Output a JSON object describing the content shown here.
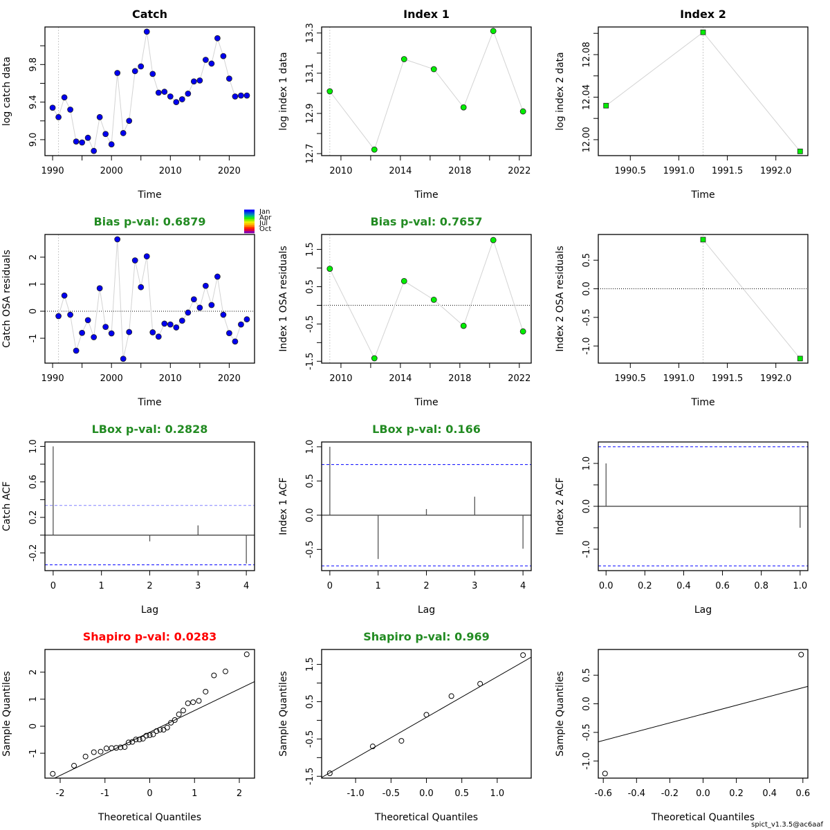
{
  "footer": "spict_v1.3.5@ac6aaf",
  "colors": {
    "catch_point": "#0000EE",
    "index_point": "#00EE00",
    "pass_title": "#228B22",
    "fail_title": "#FF0000",
    "conf_line": "#0000FF",
    "connector": "#D3D3D3"
  },
  "month_legend": {
    "labels": [
      "Jan",
      "Apr",
      "Jul",
      "Oct"
    ],
    "colors": [
      "#0000FF",
      "#0044DD",
      "#0088BB",
      "#00CC66",
      "#33EE00",
      "#99EE00",
      "#EEEE00",
      "#FFBB00",
      "#FF7700",
      "#FF2200",
      "#DD0044",
      "#8800AA"
    ]
  },
  "chart_data": [
    {
      "id": "catch-data",
      "type": "line",
      "title": "Catch",
      "title_color": "#000000",
      "xlabel": "Time",
      "ylabel": "log catch data",
      "xlim": [
        1988.7,
        2024.3
      ],
      "ylim": [
        8.83,
        10.2
      ],
      "xticks": [
        1990,
        2000,
        2010,
        2020
      ],
      "xtick_labels": [
        "1990",
        "2000",
        "2010",
        "2020"
      ],
      "xminor": [
        1995,
        2005,
        2015
      ],
      "yticks": [
        9.0,
        9.2,
        9.4,
        9.6,
        9.8,
        10.0
      ],
      "ytick_labels": [
        "9.0",
        "",
        "9.4",
        "",
        "9.8",
        ""
      ],
      "vline": 1991,
      "marker": "circle",
      "color": "#0000EE",
      "x": [
        1990,
        1991,
        1992,
        1993,
        1994,
        1995,
        1996,
        1997,
        1998,
        1999,
        2000,
        2001,
        2002,
        2003,
        2004,
        2005,
        2006,
        2007,
        2008,
        2009,
        2010,
        2011,
        2012,
        2013,
        2014,
        2015,
        2016,
        2017,
        2018,
        2019,
        2020,
        2021,
        2022,
        2023
      ],
      "y": [
        9.34,
        9.24,
        9.45,
        9.32,
        8.98,
        8.97,
        9.02,
        8.88,
        9.24,
        9.06,
        8.95,
        9.71,
        9.07,
        9.2,
        9.73,
        9.78,
        10.15,
        9.7,
        9.5,
        9.51,
        9.46,
        9.4,
        9.43,
        9.49,
        9.62,
        9.63,
        9.85,
        9.81,
        10.08,
        9.89,
        9.65,
        9.46,
        9.47,
        9.47
      ]
    },
    {
      "id": "index1-data",
      "type": "line",
      "title": "Index 1",
      "title_color": "#000000",
      "xlabel": "Time",
      "ylabel": "log index 1 data",
      "xlim": [
        2008.7,
        2022.8
      ],
      "ylim": [
        12.69,
        13.33
      ],
      "xticks": [
        2010,
        2012,
        2014,
        2016,
        2018,
        2020,
        2022
      ],
      "xtick_labels": [
        "2010",
        "",
        "2014",
        "",
        "2018",
        "",
        "2022"
      ],
      "yticks": [
        12.7,
        12.8,
        12.9,
        13.0,
        13.1,
        13.2,
        13.3
      ],
      "ytick_labels": [
        "12.7",
        "",
        "12.9",
        "",
        "13.1",
        "",
        "13.3"
      ],
      "vline": 2009.25,
      "marker": "circle",
      "color": "#00EE00",
      "x": [
        2009.25,
        2012.25,
        2014.25,
        2016.25,
        2018.25,
        2020.25,
        2022.25
      ],
      "y": [
        13.01,
        12.72,
        13.17,
        13.12,
        12.93,
        13.31,
        12.91
      ]
    },
    {
      "id": "index2-data",
      "type": "line",
      "title": "Index 2",
      "title_color": "#000000",
      "xlabel": "Time",
      "ylabel": "log index 2 data",
      "xlim": [
        1990.17,
        1992.33
      ],
      "ylim": [
        11.985,
        12.106
      ],
      "xticks": [
        1990.5,
        1991.0,
        1991.5,
        1992.0
      ],
      "xtick_labels": [
        "1990.5",
        "1991.0",
        "1991.5",
        "1992.0"
      ],
      "yticks": [
        12.0,
        12.02,
        12.04,
        12.06,
        12.08,
        12.1
      ],
      "ytick_labels": [
        "12.00",
        "",
        "12.04",
        "",
        "12.08",
        ""
      ],
      "vline": 1991.25,
      "marker": "square",
      "color": "#00EE00",
      "x": [
        1990.25,
        1991.25,
        1992.25
      ],
      "y": [
        12.032,
        12.101,
        11.989
      ]
    },
    {
      "id": "catch-residuals",
      "type": "line",
      "title": "Bias p-val: 0.6879",
      "title_color": "#228B22",
      "xlabel": "Time",
      "ylabel": "Catch OSA residuals",
      "xlim": [
        1988.7,
        2024.3
      ],
      "ylim": [
        -1.92,
        2.84
      ],
      "xticks": [
        1990,
        2000,
        2010,
        2020
      ],
      "xtick_labels": [
        "1990",
        "2000",
        "2010",
        "2020"
      ],
      "xminor": [
        1995,
        2005,
        2015
      ],
      "yticks": [
        -1,
        0,
        1,
        2
      ],
      "ytick_labels": [
        "-1",
        "0",
        "1",
        "2"
      ],
      "hline": 0,
      "vline": 1991,
      "marker": "circle",
      "color": "#0000EE",
      "month_legend": true,
      "x": [
        1991,
        1992,
        1993,
        1994,
        1995,
        1996,
        1997,
        1998,
        1999,
        2000,
        2001,
        2002,
        2003,
        2004,
        2005,
        2006,
        2007,
        2008,
        2009,
        2010,
        2011,
        2012,
        2013,
        2014,
        2015,
        2016,
        2017,
        2018,
        2019,
        2020,
        2021,
        2022,
        2023
      ],
      "y": [
        -0.18,
        0.58,
        -0.13,
        -1.46,
        -0.8,
        -0.33,
        -0.96,
        0.85,
        -0.58,
        -0.82,
        2.66,
        -1.76,
        -0.77,
        1.88,
        0.89,
        2.03,
        -0.78,
        -0.94,
        -0.46,
        -0.49,
        -0.6,
        -0.35,
        -0.05,
        0.44,
        0.13,
        0.94,
        0.23,
        1.28,
        -0.13,
        -0.81,
        -1.12,
        -0.49,
        -0.3
      ]
    },
    {
      "id": "index1-residuals",
      "type": "line",
      "title": "Bias p-val: 0.7657",
      "title_color": "#228B22",
      "xlabel": "Time",
      "ylabel": "Index 1 OSA residuals",
      "xlim": [
        2008.7,
        2022.8
      ],
      "ylim": [
        -1.55,
        1.9
      ],
      "xticks": [
        2010,
        2012,
        2014,
        2016,
        2018,
        2020,
        2022
      ],
      "xtick_labels": [
        "2010",
        "",
        "2014",
        "",
        "2018",
        "",
        "2022"
      ],
      "yticks": [
        -1.5,
        -1.0,
        -0.5,
        0.0,
        0.5,
        1.0,
        1.5
      ],
      "ytick_labels": [
        "-1.5",
        "",
        "-0.5",
        "",
        "0.5",
        "",
        "1.5"
      ],
      "hline": 0,
      "vline": 2009.25,
      "marker": "circle",
      "color": "#00EE00",
      "x": [
        2009.25,
        2012.25,
        2014.25,
        2016.25,
        2018.25,
        2020.25,
        2022.25
      ],
      "y": [
        0.98,
        -1.42,
        0.65,
        0.15,
        -0.55,
        1.75,
        -0.7
      ]
    },
    {
      "id": "index2-residuals",
      "type": "line",
      "title": "",
      "title_color": "#000000",
      "xlabel": "Time",
      "ylabel": "Index 2 OSA residuals",
      "xlim": [
        1990.17,
        1992.33
      ],
      "ylim": [
        -1.3,
        0.95
      ],
      "xticks": [
        1990.5,
        1991.0,
        1991.5,
        1992.0
      ],
      "xtick_labels": [
        "1990.5",
        "1991.0",
        "1991.5",
        "1992.0"
      ],
      "yticks": [
        -1.0,
        -0.5,
        0.0,
        0.5
      ],
      "ytick_labels": [
        "-1.0",
        "-0.5",
        "0.0",
        "0.5"
      ],
      "hline": 0,
      "vline": 1991.25,
      "marker": "square",
      "color": "#00EE00",
      "x": [
        1991.25,
        1992.25
      ],
      "y": [
        0.86,
        -1.22
      ]
    },
    {
      "id": "catch-acf",
      "type": "bar",
      "title": "LBox p-val: 0.2828",
      "title_color": "#228B22",
      "xlabel": "Lag",
      "ylabel": "Catch ACF",
      "xlim": [
        -0.17,
        4.17
      ],
      "ylim": [
        -0.4,
        1.05
      ],
      "xticks": [
        0,
        1,
        2,
        3,
        4
      ],
      "xtick_labels": [
        "0",
        "1",
        "2",
        "3",
        "4"
      ],
      "yticks": [
        -0.2,
        0.0,
        0.2,
        0.4,
        0.6,
        0.8,
        1.0
      ],
      "ytick_labels": [
        "-0.2",
        "",
        "0.2",
        "",
        "0.6",
        "",
        "1.0"
      ],
      "conf": 0.335,
      "lags": [
        0,
        1,
        2,
        3,
        4
      ],
      "acf": [
        1.0,
        0.0,
        -0.07,
        0.11,
        -0.32
      ]
    },
    {
      "id": "index1-acf",
      "type": "bar",
      "title": "LBox p-val: 0.166",
      "title_color": "#228B22",
      "xlabel": "Lag",
      "ylabel": "Index 1 ACF",
      "xlim": [
        -0.17,
        4.17
      ],
      "ylim": [
        -0.81,
        1.07
      ],
      "xticks": [
        0,
        1,
        2,
        3,
        4
      ],
      "xtick_labels": [
        "0",
        "1",
        "2",
        "3",
        "4"
      ],
      "yticks": [
        -0.5,
        0.0,
        0.5,
        1.0
      ],
      "ytick_labels": [
        "-0.5",
        "0.0",
        "0.5",
        "1.0"
      ],
      "conf": 0.74,
      "lags": [
        0,
        1,
        2,
        3,
        4
      ],
      "acf": [
        1.0,
        -0.64,
        0.09,
        0.27,
        -0.49
      ]
    },
    {
      "id": "index2-acf",
      "type": "bar",
      "title": "",
      "title_color": "#000000",
      "xlabel": "Lag",
      "ylabel": "Index 2 ACF",
      "xlim": [
        -0.04,
        1.04
      ],
      "ylim": [
        -1.5,
        1.5
      ],
      "xticks": [
        0,
        0.2,
        0.4,
        0.6,
        0.8,
        1.0
      ],
      "xtick_labels": [
        "0.0",
        "0.2",
        "0.4",
        "0.6",
        "0.8",
        "1.0"
      ],
      "yticks": [
        -1.0,
        -0.5,
        0.0,
        0.5,
        1.0
      ],
      "ytick_labels": [
        "-1.0",
        "",
        "0.0",
        "",
        "1.0"
      ],
      "conf": 1.39,
      "lags": [
        0,
        1
      ],
      "acf": [
        1.0,
        -0.5
      ]
    },
    {
      "id": "catch-qq",
      "type": "scatter",
      "title": "Shapiro p-val: 0.0283",
      "title_color": "#FF0000",
      "xlabel": "Theoretical Quantiles",
      "ylabel": "Sample Quantiles",
      "xlim": [
        -2.34,
        2.34
      ],
      "ylim": [
        -1.92,
        2.84
      ],
      "xticks": [
        -2,
        -1,
        0,
        1,
        2
      ],
      "xtick_labels": [
        "-2",
        "-1",
        "0",
        "1",
        "2"
      ],
      "yticks": [
        -1,
        0,
        1,
        2
      ],
      "ytick_labels": [
        "-1",
        "0",
        "1",
        "2"
      ],
      "qqline": {
        "slope": 0.8,
        "intercept": -0.22
      },
      "sample": [
        -1.76,
        -1.46,
        -1.12,
        -0.96,
        -0.94,
        -0.82,
        -0.81,
        -0.8,
        -0.78,
        -0.77,
        -0.6,
        -0.58,
        -0.49,
        -0.49,
        -0.46,
        -0.35,
        -0.33,
        -0.3,
        -0.18,
        -0.13,
        -0.13,
        -0.05,
        0.13,
        0.23,
        0.44,
        0.58,
        0.85,
        0.89,
        0.94,
        1.28,
        1.88,
        2.03,
        2.66
      ]
    },
    {
      "id": "index1-qq",
      "type": "scatter",
      "title": "Shapiro p-val: 0.969",
      "title_color": "#228B22",
      "xlabel": "Theoretical Quantiles",
      "ylabel": "Sample Quantiles",
      "xlim": [
        -1.48,
        1.48
      ],
      "ylim": [
        -1.55,
        1.9
      ],
      "xticks": [
        -1.0,
        -0.5,
        0.0,
        0.5,
        1.0
      ],
      "xtick_labels": [
        "-1.0",
        "-0.5",
        "0.0",
        "0.5",
        "1.0"
      ],
      "yticks": [
        -1.5,
        -1.0,
        -0.5,
        0.0,
        0.5,
        1.0,
        1.5
      ],
      "ytick_labels": [
        "-1.5",
        "",
        "-0.5",
        "",
        "0.5",
        "",
        "1.5"
      ],
      "qqline": {
        "slope": 1.09,
        "intercept": 0.08
      },
      "sample": [
        -1.42,
        -0.7,
        -0.55,
        0.15,
        0.65,
        0.98,
        1.75
      ]
    },
    {
      "id": "index2-qq",
      "type": "scatter",
      "title": "",
      "title_color": "#000000",
      "xlabel": "Theoretical Quantiles",
      "ylabel": "Sample Quantiles",
      "xlim": [
        -0.63,
        0.63
      ],
      "ylim": [
        -1.3,
        0.95
      ],
      "xticks": [
        -0.6,
        -0.4,
        -0.2,
        0.0,
        0.2,
        0.4,
        0.6
      ],
      "xtick_labels": [
        "-0.6",
        "-0.4",
        "-0.2",
        "0.0",
        "0.2",
        "0.4",
        "0.6"
      ],
      "yticks": [
        -1.0,
        -0.5,
        0.0,
        0.5
      ],
      "ytick_labels": [
        "-1.0",
        "-0.5",
        "0.0",
        "0.5"
      ],
      "qqline": {
        "slope": 0.77,
        "intercept": -0.18
      },
      "sample": [
        -1.22,
        0.86
      ]
    }
  ]
}
